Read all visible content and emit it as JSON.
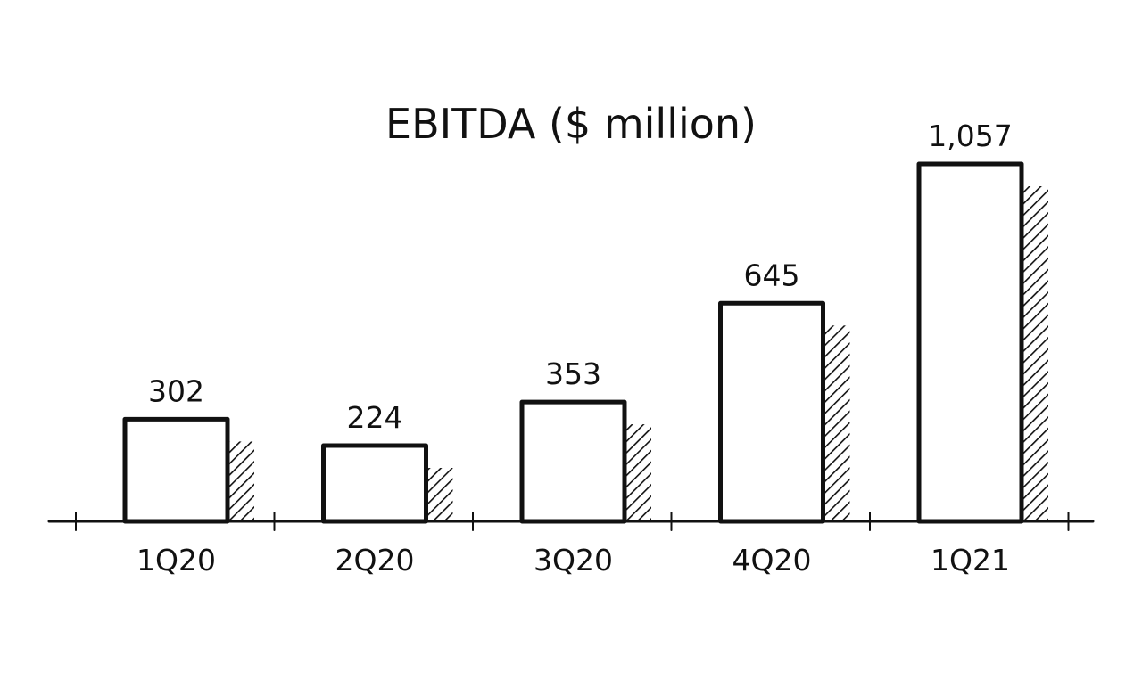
{
  "chart_data": {
    "type": "bar",
    "title": "EBITDA ($ million)",
    "categories": [
      "1Q20",
      "2Q20",
      "3Q20",
      "4Q20",
      "1Q21"
    ],
    "values": [
      302,
      224,
      353,
      645,
      1057
    ],
    "value_labels": [
      "302",
      "224",
      "353",
      "645",
      "1,057"
    ],
    "xlabel": "",
    "ylabel": "",
    "ylim": [
      0,
      1200
    ],
    "grid": false,
    "colors": {
      "bar_fill": "#ffffff",
      "stroke": "#111111"
    }
  }
}
